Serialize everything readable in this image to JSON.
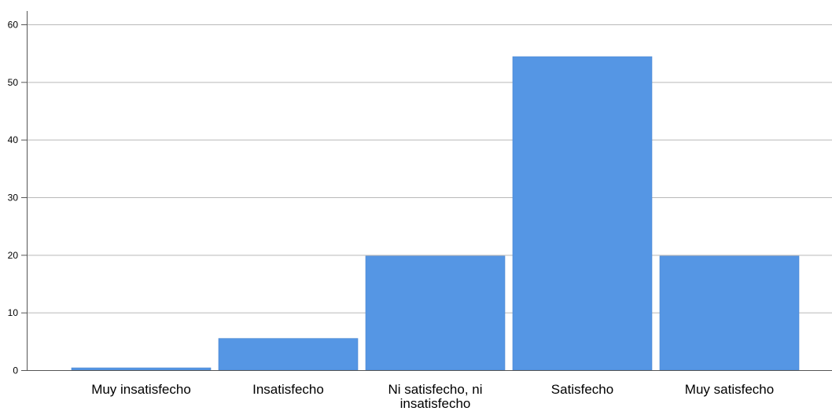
{
  "chart_data": {
    "type": "bar",
    "categories": [
      [
        "Muy insatisfecho"
      ],
      [
        "Insatisfecho"
      ],
      [
        "Ni satisfecho, ni",
        "insatisfecho"
      ],
      [
        "Satisfecho"
      ],
      [
        "Muy satisfecho"
      ]
    ],
    "values": [
      0.4,
      5.5,
      19.8,
      54.4,
      19.8
    ],
    "ylim": [
      0,
      62
    ],
    "yticks": [
      0,
      10,
      20,
      30,
      40,
      50,
      60
    ],
    "grid": true,
    "title": "",
    "xlabel": "",
    "ylabel": "",
    "colors": {
      "bar": "#5596e4",
      "grid": "#b9b9b9",
      "axis": "#555555",
      "background": "#ffffff"
    }
  }
}
